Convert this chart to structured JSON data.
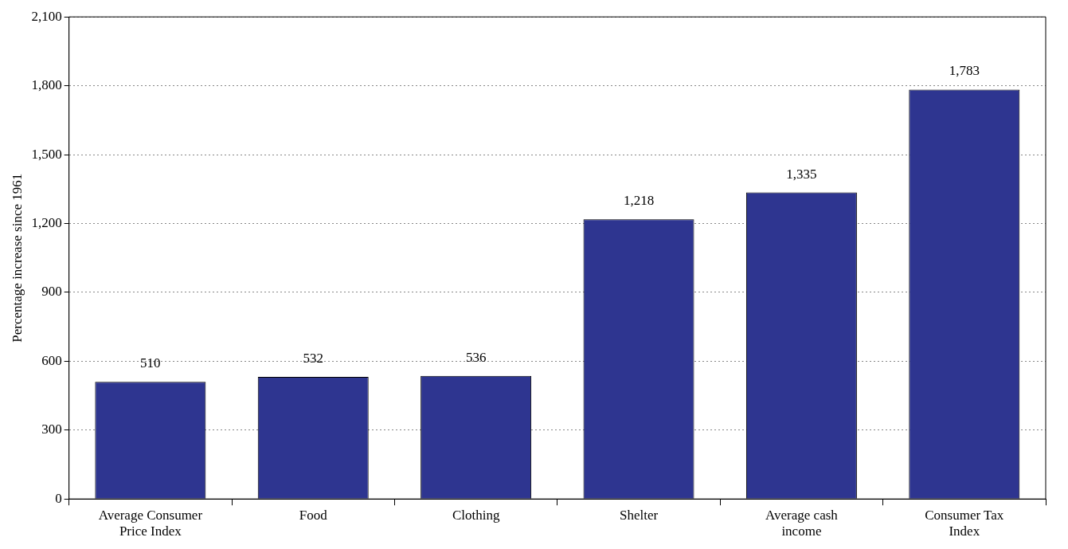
{
  "chart_data": {
    "type": "bar",
    "ylabel": "Percentage increase since 1961",
    "categories": [
      "Average Consumer Price Index",
      "Food",
      "Clothing",
      "Shelter",
      "Average cash income",
      "Consumer Tax Index"
    ],
    "values": [
      510,
      532,
      536,
      1218,
      1335,
      1783
    ],
    "value_labels": [
      "510",
      "532",
      "536",
      "1,218",
      "1,335",
      "1,783"
    ],
    "color": "#2e3590",
    "ylim": [
      0,
      2100
    ],
    "yticks": [
      0,
      300,
      600,
      900,
      {
        "value": 1200,
        "label": "1,200"
      },
      {
        "value": 1500,
        "label": "1,500"
      },
      {
        "value": 1800,
        "label": "1,800"
      },
      {
        "value": 2100,
        "label": "2,100"
      }
    ],
    "grid": "y",
    "legend": false
  }
}
